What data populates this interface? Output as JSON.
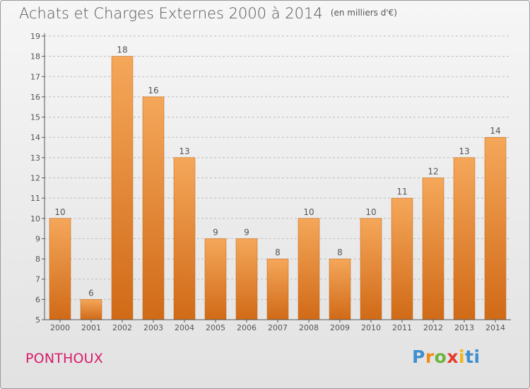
{
  "header": {
    "title": "Achats et Charges Externes 2000 à 2014",
    "unit": "(en milliers d'€)"
  },
  "footer": {
    "commune": "PONTHOUX",
    "logo": "Proxiti"
  },
  "colors": {
    "bar_top": "#f5a75a",
    "bar_bottom": "#d06a17",
    "axis": "#555555",
    "grid": "#bcbcbc",
    "commune": "#d81b6a"
  },
  "chart_data": {
    "type": "bar",
    "title": "Achats et Charges Externes 2000 à 2014",
    "subtitle": "(en milliers d'€)",
    "categories": [
      "2000",
      "2001",
      "2002",
      "2003",
      "2004",
      "2005",
      "2006",
      "2007",
      "2008",
      "2009",
      "2010",
      "2011",
      "2012",
      "2013",
      "2014"
    ],
    "values": [
      10,
      6,
      18,
      16,
      13,
      9,
      9,
      8,
      10,
      8,
      10,
      11,
      12,
      13,
      14
    ],
    "ylim": [
      5,
      19
    ],
    "yticks": [
      5,
      6,
      7,
      8,
      9,
      10,
      11,
      12,
      13,
      14,
      15,
      16,
      17,
      18,
      19
    ],
    "grid": true,
    "data_labels": true
  }
}
